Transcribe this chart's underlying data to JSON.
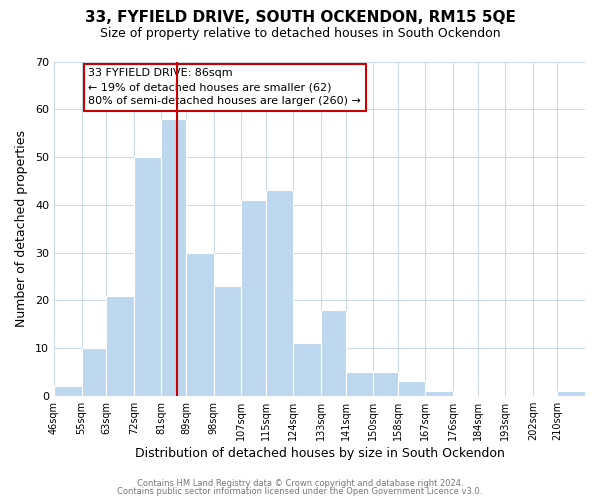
{
  "title": "33, FYFIELD DRIVE, SOUTH OCKENDON, RM15 5QE",
  "subtitle": "Size of property relative to detached houses in South Ockendon",
  "xlabel": "Distribution of detached houses by size in South Ockendon",
  "ylabel": "Number of detached properties",
  "footer_line1": "Contains HM Land Registry data © Crown copyright and database right 2024.",
  "footer_line2": "Contains public sector information licensed under the Open Government Licence v3.0.",
  "annotation_title": "33 FYFIELD DRIVE: 86sqm",
  "annotation_line1": "← 19% of detached houses are smaller (62)",
  "annotation_line2": "80% of semi-detached houses are larger (260) →",
  "bar_color": "#BDD7EE",
  "bar_edge_color": "#FFFFFF",
  "vline_color": "#CC0000",
  "vline_x": 86,
  "bins": [
    46,
    55,
    63,
    72,
    81,
    89,
    98,
    107,
    115,
    124,
    133,
    141,
    150,
    158,
    167,
    176,
    184,
    193,
    202,
    210,
    219
  ],
  "heights": [
    2,
    10,
    21,
    50,
    58,
    30,
    23,
    41,
    43,
    11,
    18,
    5,
    5,
    3,
    1,
    0,
    0,
    0,
    0,
    1
  ],
  "ylim": [
    0,
    70
  ],
  "yticks": [
    0,
    10,
    20,
    30,
    40,
    50,
    60,
    70
  ],
  "background_color": "#FFFFFF",
  "grid_color": "#C8D8E8",
  "title_fontsize": 11,
  "subtitle_fontsize": 9,
  "tick_label_fontsize": 7,
  "axis_label_fontsize": 9,
  "annotation_fontsize": 8,
  "footer_fontsize": 6
}
